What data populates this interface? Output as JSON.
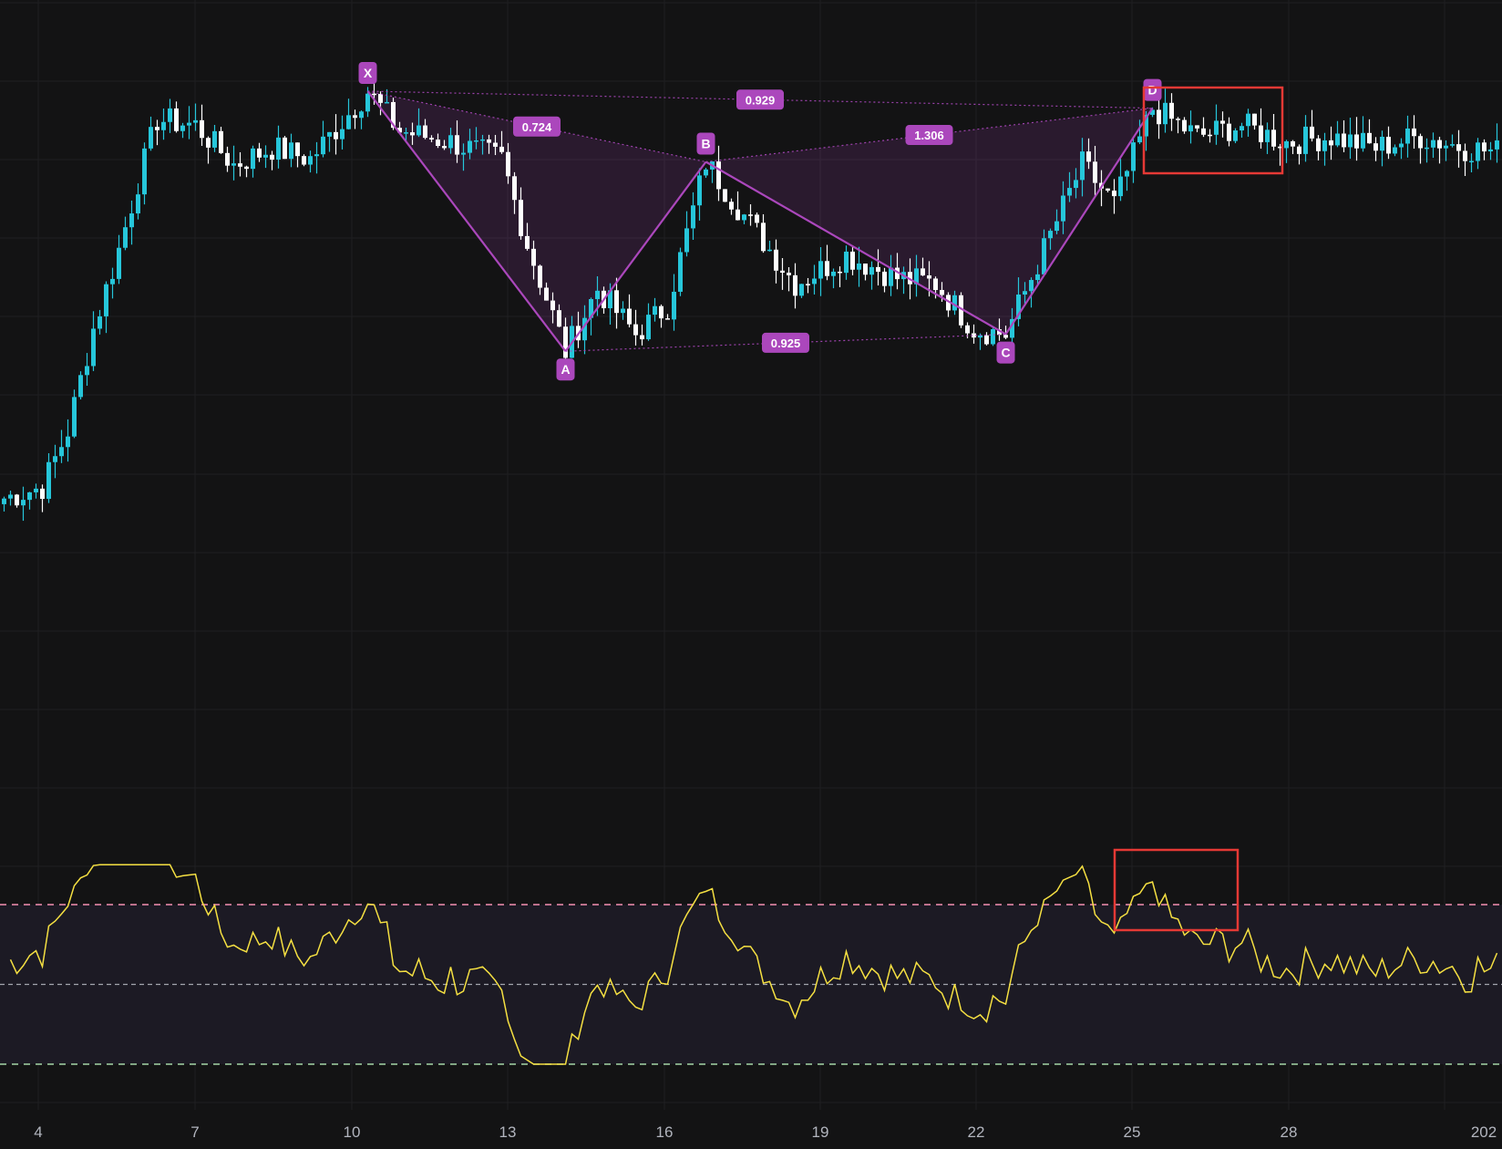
{
  "chart_data": {
    "type": "candlestick",
    "title": "",
    "x_tick_labels": [
      "4",
      "7",
      "10",
      "13",
      "16",
      "19",
      "22",
      "25",
      "28",
      "202"
    ],
    "harmonic_pattern": {
      "points": [
        {
          "label": "X",
          "bar": 57,
          "price": 100.0
        },
        {
          "label": "A",
          "bar": 88,
          "price": 54.0
        },
        {
          "label": "B",
          "bar": 110,
          "price": 87.5
        },
        {
          "label": "C",
          "bar": 157,
          "price": 57.0
        },
        {
          "label": "D",
          "bar": 180,
          "price": 97.0
        }
      ],
      "ratios": [
        {
          "label": "0.724",
          "from": "X",
          "to": "B"
        },
        {
          "label": "0.925",
          "from": "A",
          "to": "C"
        },
        {
          "label": "1.306",
          "from": "B",
          "to": "D"
        },
        {
          "label": "0.929",
          "from": "X",
          "to": "D"
        }
      ],
      "color": "#ab47bc"
    },
    "highlight_color": "#e53935",
    "bull_color": "#26c6da",
    "bear_color": "#ffffff",
    "oscillator": {
      "line_color": "#f5e042",
      "upper_level_color": "#f48fb1",
      "lower_level_color": "#a5d6a7",
      "mid_level_color": "#d1d4dc"
    }
  }
}
